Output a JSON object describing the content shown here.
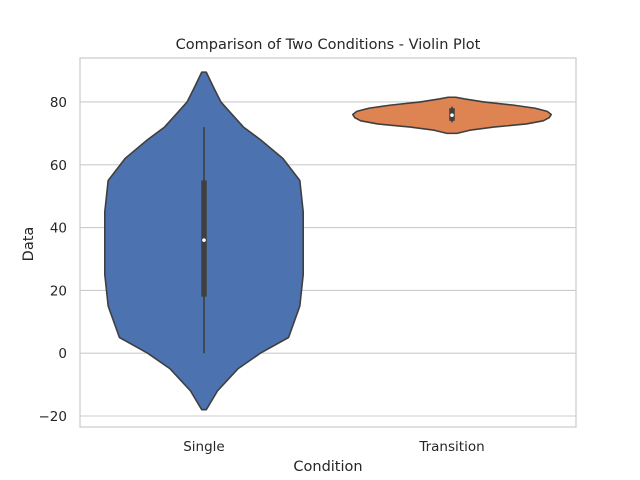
{
  "chart_data": {
    "type": "violin",
    "title": "Comparison of Two Conditions - Violin Plot",
    "xlabel": "Condition",
    "ylabel": "Data",
    "ylim": [
      -23.5,
      94
    ],
    "yticks": [
      -20,
      0,
      20,
      40,
      60,
      80
    ],
    "grid": true,
    "categories": [
      "Single",
      "Transition"
    ],
    "violins": [
      {
        "category": "Single",
        "color": "#4c72b0",
        "min": -18,
        "max": 89.5,
        "whisker_low": 0,
        "whisker_high": 72,
        "q1": 18,
        "median": 36,
        "q3": 55,
        "profile": [
          [
            -18,
            0.2
          ],
          [
            -12,
            1.2
          ],
          [
            -5,
            3
          ],
          [
            0,
            5
          ],
          [
            5,
            7.5
          ],
          [
            15,
            8.5
          ],
          [
            25,
            8.8
          ],
          [
            35,
            8.8
          ],
          [
            45,
            8.8
          ],
          [
            55,
            8.5
          ],
          [
            62,
            7
          ],
          [
            68,
            5
          ],
          [
            72,
            3.5
          ],
          [
            76,
            2.5
          ],
          [
            80,
            1.5
          ],
          [
            85,
            0.8
          ],
          [
            89.5,
            0.2
          ]
        ]
      },
      {
        "category": "Transition",
        "color": "#dd8452",
        "min": 70,
        "max": 81.5,
        "whisker_low": 73.5,
        "whisker_high": 78.5,
        "q1": 74,
        "median": 75.8,
        "q3": 78,
        "profile": [
          [
            70,
            5
          ],
          [
            71,
            18
          ],
          [
            72,
            42
          ],
          [
            73,
            75
          ],
          [
            74,
            92
          ],
          [
            75,
            98
          ],
          [
            76,
            100
          ],
          [
            77,
            96
          ],
          [
            78,
            84
          ],
          [
            79,
            62
          ],
          [
            80,
            32
          ],
          [
            81,
            12
          ],
          [
            81.5,
            4
          ]
        ]
      }
    ]
  }
}
